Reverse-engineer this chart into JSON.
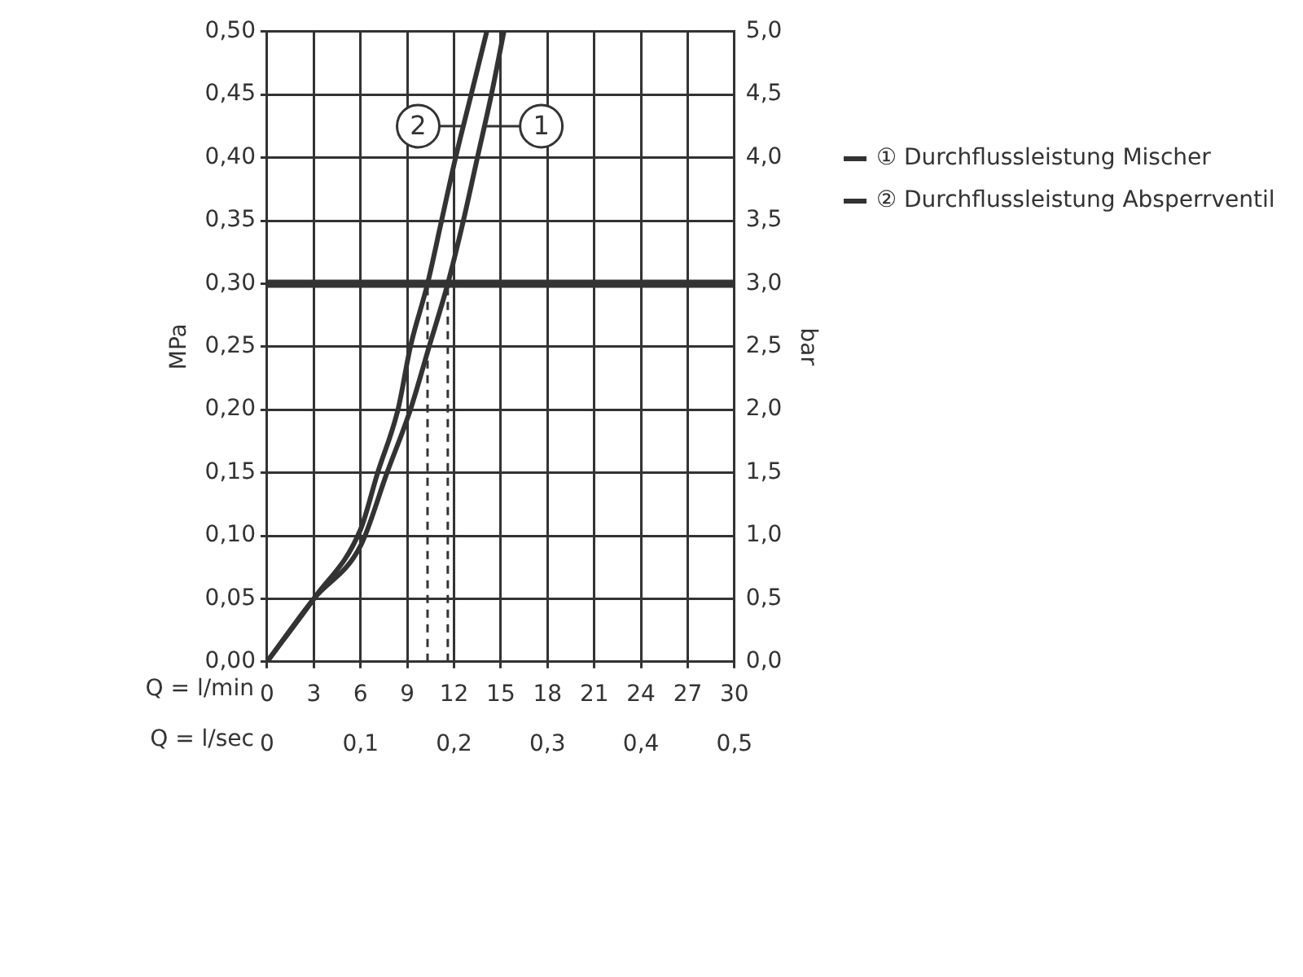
{
  "chart_data": {
    "type": "line",
    "xlabel": "Q = l/min",
    "x2label": "Q = l/sec",
    "ylabel": "MPa",
    "y2label": "bar",
    "xlim": [
      0,
      30
    ],
    "xticks": [
      0,
      3,
      6,
      9,
      12,
      15,
      18,
      21,
      24,
      27,
      30
    ],
    "x2lim": [
      0,
      0.5
    ],
    "x2ticks": [
      {
        "value": 0,
        "label": "0"
      },
      {
        "value": 0.1,
        "label": "0,1"
      },
      {
        "value": 0.2,
        "label": "0,2"
      },
      {
        "value": 0.3,
        "label": "0,3"
      },
      {
        "value": 0.4,
        "label": "0,4"
      },
      {
        "value": 0.5,
        "label": "0,5"
      }
    ],
    "ylim": [
      0,
      0.5
    ],
    "yticks": [
      {
        "value": 0,
        "label": "0,00"
      },
      {
        "value": 0.05,
        "label": "0,05"
      },
      {
        "value": 0.1,
        "label": "0,10"
      },
      {
        "value": 0.15,
        "label": "0,15"
      },
      {
        "value": 0.2,
        "label": "0,20"
      },
      {
        "value": 0.25,
        "label": "0,25"
      },
      {
        "value": 0.3,
        "label": "0,30"
      },
      {
        "value": 0.35,
        "label": "0,35"
      },
      {
        "value": 0.4,
        "label": "0,40"
      },
      {
        "value": 0.45,
        "label": "0,45"
      },
      {
        "value": 0.5,
        "label": "0,50"
      }
    ],
    "y2lim": [
      0,
      5
    ],
    "y2ticks": [
      {
        "value": 0,
        "label": "0,0"
      },
      {
        "value": 0.5,
        "label": "0,5"
      },
      {
        "value": 1,
        "label": "1,0"
      },
      {
        "value": 1.5,
        "label": "1,5"
      },
      {
        "value": 2,
        "label": "2,0"
      },
      {
        "value": 2.5,
        "label": "2,5"
      },
      {
        "value": 3,
        "label": "3,0"
      },
      {
        "value": 3.5,
        "label": "3,5"
      },
      {
        "value": 4,
        "label": "4,0"
      },
      {
        "value": 4.5,
        "label": "4,5"
      },
      {
        "value": 5,
        "label": "5,0"
      }
    ],
    "grid": true,
    "legend": "right",
    "marker": "none",
    "line_style": "solid",
    "series": [
      {
        "name": "① Durchflussleistung Mischer",
        "color": "#333333",
        "x": [
          0,
          3,
          6,
          7.7,
          9.2,
          10.4,
          11.6,
          12.6,
          13.5,
          14.4,
          15.2
        ],
        "values": [
          0,
          0.05,
          0.092,
          0.15,
          0.2,
          0.25,
          0.3,
          0.35,
          0.4,
          0.45,
          0.5
        ]
      },
      {
        "name": "② Durchflussleistung Absperrventil",
        "color": "#333333",
        "x": [
          0,
          3,
          6,
          7.1,
          8.4,
          9.2,
          10.3,
          11.2,
          12.1,
          13.1,
          14.1
        ],
        "values": [
          0,
          0.05,
          0.105,
          0.15,
          0.2,
          0.25,
          0.3,
          0.35,
          0.4,
          0.45,
          0.5
        ]
      }
    ],
    "ref_lines": [
      {
        "axis": "y",
        "value": 0.3,
        "color": "#333333",
        "line_style": "solid"
      },
      {
        "axis": "x",
        "value": 10.3,
        "color": "#333333",
        "line_style": "dashed"
      },
      {
        "axis": "x",
        "value": 11.6,
        "color": "#333333",
        "line_style": "dashed"
      }
    ],
    "annotations": [
      {
        "text": "1",
        "x": 17.6,
        "y": 0.425
      },
      {
        "text": "2",
        "x": 9.7,
        "y": 0.425
      }
    ]
  }
}
